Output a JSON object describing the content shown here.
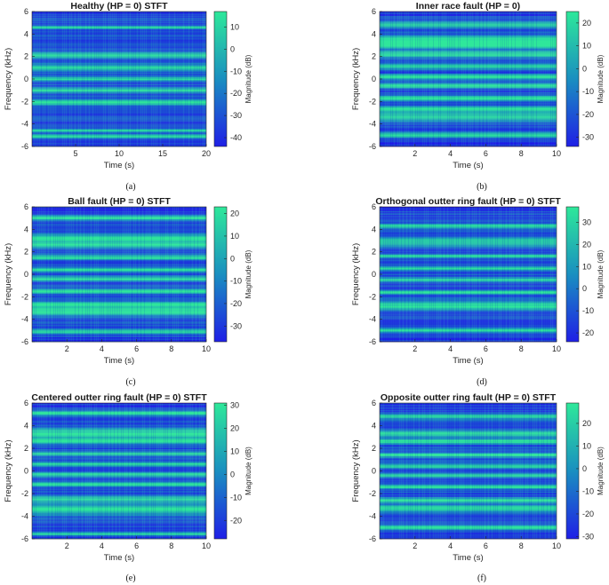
{
  "chart_data": [
    {
      "type": "heatmap",
      "title": "Healthy (HP = 0) STFT",
      "caption": "(a)",
      "xlabel": "Time (s)",
      "ylabel": "Frequency (kHz)",
      "colorbar_label": "Magnitude (dB)",
      "xlim": [
        0,
        20
      ],
      "ylim": [
        -6,
        6
      ],
      "xticks": [
        5,
        10,
        15,
        20
      ],
      "yticks": [
        -6,
        -4,
        -2,
        0,
        2,
        4,
        6
      ],
      "clim": [
        -44,
        17
      ],
      "cticks": [
        -40,
        -30,
        -20,
        -10,
        0,
        10
      ],
      "colormap": [
        "#1f1fe6",
        "#1a8fc0",
        "#2ee89a"
      ],
      "bands_khz": [
        [
          -5.1,
          0.35
        ],
        [
          -4.6,
          0.25
        ],
        [
          -2.1,
          0.5
        ],
        [
          -1.0,
          0.4
        ],
        [
          0.0,
          0.35
        ],
        [
          1.0,
          0.6
        ],
        [
          2.1,
          0.5
        ],
        [
          4.6,
          0.25
        ]
      ]
    },
    {
      "type": "heatmap",
      "title": "Inner race fault (HP = 0)",
      "caption": "(b)",
      "xlabel": "Time (s)",
      "ylabel": "Frequency (kHz)",
      "colorbar_label": "Magnitude (dB)",
      "xlim": [
        0,
        10
      ],
      "ylim": [
        -6,
        6
      ],
      "xticks": [
        2,
        4,
        6,
        8,
        10
      ],
      "yticks": [
        -6,
        -4,
        -2,
        0,
        2,
        4,
        6
      ],
      "clim": [
        -34,
        25
      ],
      "cticks": [
        -30,
        -20,
        -10,
        0,
        10,
        20
      ],
      "colormap": [
        "#1f1fe6",
        "#1a8fc0",
        "#2ee89a"
      ],
      "bands_khz": [
        [
          -5.0,
          0.45
        ],
        [
          -3.4,
          0.75
        ],
        [
          -2.7,
          0.55
        ],
        [
          -1.7,
          0.45
        ],
        [
          -0.6,
          0.45
        ],
        [
          0.2,
          0.4
        ],
        [
          1.1,
          0.45
        ],
        [
          2.2,
          0.55
        ],
        [
          3.0,
          0.6
        ],
        [
          3.5,
          0.75
        ],
        [
          4.8,
          0.5
        ]
      ]
    },
    {
      "type": "heatmap",
      "title": "Ball fault (HP = 0) STFT",
      "caption": "(c)",
      "xlabel": "Time (s)",
      "ylabel": "Frequency (kHz)",
      "colorbar_label": "Magnitude (dB)",
      "xlim": [
        0,
        10
      ],
      "ylim": [
        -6,
        6
      ],
      "xticks": [
        2,
        4,
        6,
        8,
        10
      ],
      "yticks": [
        -6,
        -4,
        -2,
        0,
        2,
        4,
        6
      ],
      "clim": [
        -37,
        23
      ],
      "cticks": [
        -30,
        -20,
        -10,
        0,
        10,
        20
      ],
      "colormap": [
        "#1f1fe6",
        "#1a8fc0",
        "#2ee89a"
      ],
      "bands_khz": [
        [
          -5.1,
          0.4
        ],
        [
          -3.3,
          0.75
        ],
        [
          -2.7,
          0.5
        ],
        [
          -1.5,
          0.4
        ],
        [
          -0.4,
          0.4
        ],
        [
          0.4,
          0.4
        ],
        [
          1.5,
          0.4
        ],
        [
          2.6,
          0.5
        ],
        [
          3.2,
          0.75
        ],
        [
          5.0,
          0.4
        ]
      ]
    },
    {
      "type": "heatmap",
      "title": "Orthogonal outter ring fault (HP = 0) STFT",
      "caption": "(d)",
      "xlabel": "Time (s)",
      "ylabel": "Frequency (kHz)",
      "colorbar_label": "Magnitude (dB)",
      "xlim": [
        0,
        10
      ],
      "ylim": [
        -6,
        6
      ],
      "xticks": [
        2,
        4,
        6,
        8,
        10
      ],
      "yticks": [
        -6,
        -4,
        -2,
        0,
        2,
        4,
        6
      ],
      "clim": [
        -24,
        37
      ],
      "cticks": [
        -20,
        -10,
        0,
        10,
        20,
        30
      ],
      "colormap": [
        "#1f1fe6",
        "#1a8fc0",
        "#2ee89a"
      ],
      "bands_khz": [
        [
          -5.0,
          0.4
        ],
        [
          -2.8,
          0.8
        ],
        [
          -1.6,
          0.35
        ],
        [
          -0.5,
          0.35
        ],
        [
          0.5,
          0.35
        ],
        [
          1.6,
          0.35
        ],
        [
          2.9,
          0.8
        ],
        [
          4.3,
          0.4
        ]
      ]
    },
    {
      "type": "heatmap",
      "title": "Centered outter ring fault (HP = 0) STFT",
      "caption": "(e)",
      "xlabel": "Time (s)",
      "ylabel": "Frequency (kHz)",
      "colorbar_label": "Magnitude (dB)",
      "xlim": [
        0,
        10
      ],
      "ylim": [
        -6,
        6
      ],
      "xticks": [
        2,
        4,
        6,
        8,
        10
      ],
      "yticks": [
        -6,
        -4,
        -2,
        0,
        2,
        4,
        6
      ],
      "clim": [
        -28,
        31
      ],
      "cticks": [
        -20,
        -10,
        0,
        10,
        20,
        30
      ],
      "colormap": [
        "#1f1fe6",
        "#1a8fc0",
        "#2ee89a"
      ],
      "bands_khz": [
        [
          -5.6,
          0.3
        ],
        [
          -3.4,
          0.9
        ],
        [
          -2.5,
          0.5
        ],
        [
          -1.2,
          0.4
        ],
        [
          -0.3,
          0.35
        ],
        [
          0.6,
          0.35
        ],
        [
          1.5,
          0.4
        ],
        [
          2.6,
          0.5
        ],
        [
          3.3,
          0.9
        ],
        [
          5.1,
          0.4
        ]
      ]
    },
    {
      "type": "heatmap",
      "title": "Opposite outter ring fault (HP = 0) STFT",
      "caption": "(f)",
      "xlabel": "Time (s)",
      "ylabel": "Frequency (kHz)",
      "colorbar_label": "Magnitude (dB)",
      "xlim": [
        0,
        10
      ],
      "ylim": [
        -6,
        6
      ],
      "xticks": [
        2,
        4,
        6,
        8,
        10
      ],
      "yticks": [
        -6,
        -4,
        -2,
        0,
        2,
        4,
        6
      ],
      "clim": [
        -31,
        29
      ],
      "cticks": [
        -30,
        -20,
        -10,
        0,
        10,
        20
      ],
      "colormap": [
        "#1f1fe6",
        "#1a8fc0",
        "#2ee89a"
      ],
      "bands_khz": [
        [
          -5.0,
          0.4
        ],
        [
          -3.3,
          0.6
        ],
        [
          -2.6,
          0.45
        ],
        [
          -1.4,
          0.4
        ],
        [
          -0.4,
          0.35
        ],
        [
          0.4,
          0.35
        ],
        [
          1.4,
          0.4
        ],
        [
          2.6,
          0.45
        ],
        [
          3.3,
          0.6
        ],
        [
          4.8,
          0.45
        ]
      ]
    }
  ]
}
